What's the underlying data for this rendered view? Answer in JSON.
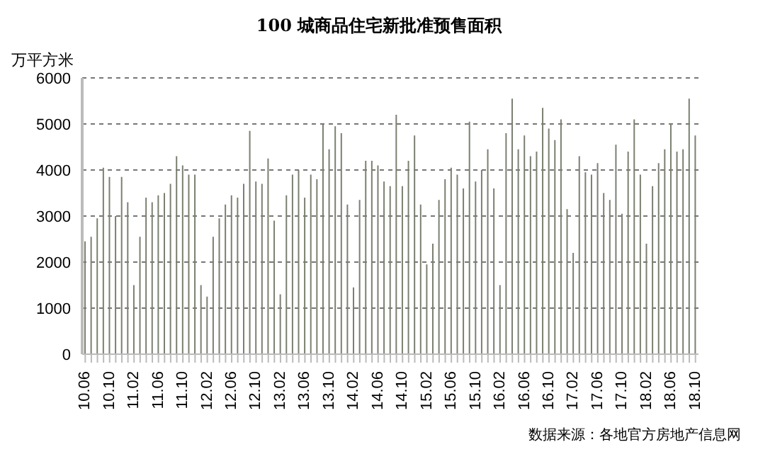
{
  "chart_data": {
    "type": "bar",
    "title": "100 城商品住宅新批准预售面积",
    "ylabel": "万平方米",
    "categories": [
      "10.06",
      null,
      null,
      null,
      "10.10",
      null,
      null,
      null,
      "11.02",
      null,
      null,
      null,
      "11.06",
      null,
      null,
      null,
      "11.10",
      null,
      null,
      null,
      "12.02",
      null,
      null,
      null,
      "12.06",
      null,
      null,
      null,
      "12.10",
      null,
      null,
      null,
      "13.02",
      null,
      null,
      null,
      "13.06",
      null,
      null,
      null,
      "13.10",
      null,
      null,
      null,
      "14.02",
      null,
      null,
      null,
      "14.06",
      null,
      null,
      null,
      "14.10",
      null,
      null,
      null,
      "15.02",
      null,
      null,
      null,
      "15.06",
      null,
      null,
      null,
      "15.10",
      null,
      null,
      null,
      "16.02",
      null,
      null,
      null,
      "16.06",
      null,
      null,
      null,
      "16.10",
      null,
      null,
      null,
      "17.02",
      null,
      null,
      null,
      "17.06",
      null,
      null,
      null,
      "17.10",
      null,
      null,
      null,
      "18.02",
      null,
      null,
      null,
      "18.06",
      null,
      null,
      null,
      "18.10"
    ],
    "values": [
      2450,
      2550,
      2950,
      4050,
      3850,
      3000,
      3850,
      3300,
      1500,
      2550,
      3400,
      3300,
      3450,
      3500,
      3700,
      4300,
      4100,
      3900,
      3900,
      1500,
      1250,
      2550,
      2950,
      3250,
      3450,
      3400,
      3700,
      4850,
      3750,
      3700,
      4250,
      2900,
      1300,
      3450,
      3900,
      4000,
      3400,
      3900,
      3800,
      5000,
      4450,
      4950,
      4800,
      3250,
      1450,
      3350,
      4200,
      4200,
      4100,
      3750,
      3650,
      5200,
      3650,
      4200,
      4750,
      3250,
      1950,
      2400,
      3350,
      3800,
      4050,
      3900,
      3600,
      5050,
      3750,
      4000,
      4450,
      3600,
      1500,
      4800,
      5550,
      4450,
      4750,
      4300,
      4400,
      5350,
      4900,
      4650,
      5100,
      3150,
      2200,
      4300,
      3950,
      3900,
      4150,
      3500,
      3350,
      4550,
      3050,
      4400,
      5100,
      3900,
      2400,
      3650,
      4150,
      4450,
      5000,
      4400,
      4450,
      5550,
      4750
    ],
    "color": "#7a8070",
    "ylim": [
      0,
      6000
    ],
    "yticks": [
      0,
      1000,
      2000,
      3000,
      4000,
      5000,
      6000
    ],
    "grid": "y",
    "annotations": [
      "数据来源：各地官方房地产信息网"
    ]
  }
}
